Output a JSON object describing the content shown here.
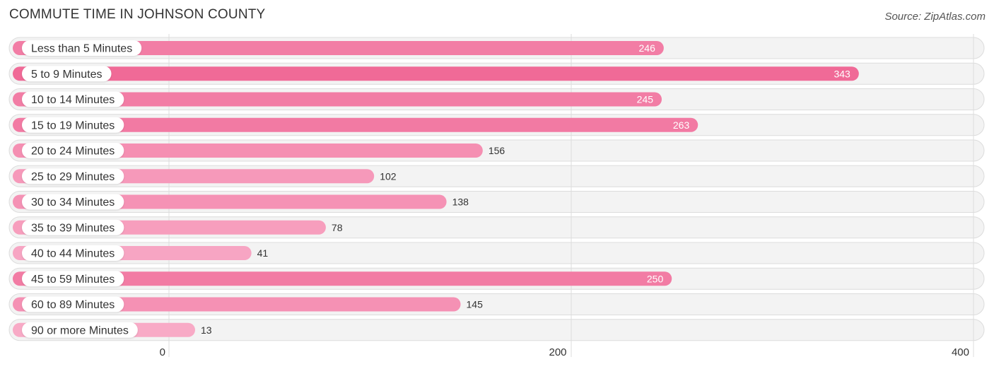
{
  "header": {
    "title": "COMMUTE TIME IN JOHNSON COUNTY",
    "source": "Source: ZipAtlas.com"
  },
  "chart_data": {
    "type": "bar",
    "orientation": "horizontal",
    "title": "COMMUTE TIME IN JOHNSON COUNTY",
    "categories": [
      "Less than 5 Minutes",
      "5 to 9 Minutes",
      "10 to 14 Minutes",
      "15 to 19 Minutes",
      "20 to 24 Minutes",
      "25 to 29 Minutes",
      "30 to 34 Minutes",
      "35 to 39 Minutes",
      "40 to 44 Minutes",
      "45 to 59 Minutes",
      "60 to 89 Minutes",
      "90 or more Minutes"
    ],
    "values": [
      246,
      343,
      245,
      263,
      156,
      102,
      138,
      78,
      41,
      250,
      145,
      13
    ],
    "xlim": [
      0,
      400
    ],
    "xticks": [
      0,
      200,
      400
    ],
    "grid": true,
    "colors": {
      "strong": "#f06a97",
      "light": "#f8aac6",
      "row_bg": "#f3f3f3"
    }
  }
}
